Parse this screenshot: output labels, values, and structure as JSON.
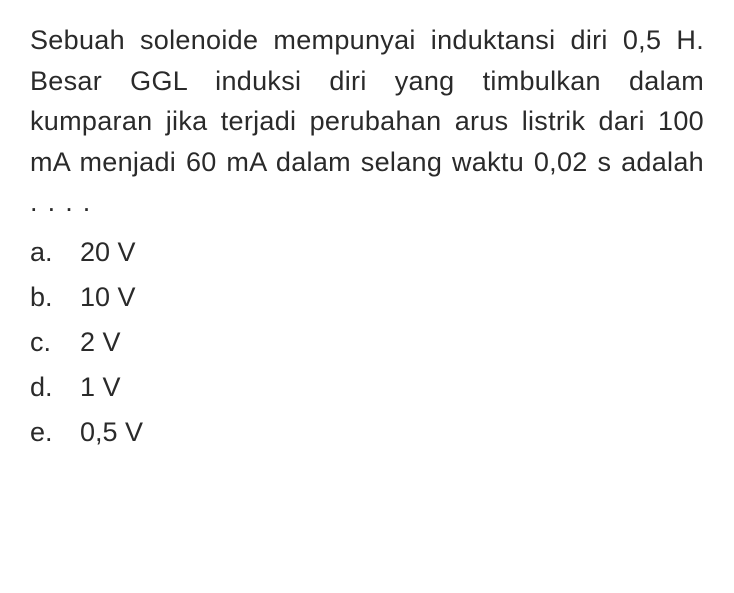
{
  "question": {
    "text": "Sebuah solenoide mempunyai induktansi diri 0,5 H. Besar GGL induksi diri yang timbulkan dalam kumparan jika terjadi perubahan arus listrik dari 100 mA menjadi 60 mA dalam selang waktu 0,02 s adalah . . . ."
  },
  "answers": [
    {
      "letter": "a.",
      "value": "20 V"
    },
    {
      "letter": "b.",
      "value": "10 V"
    },
    {
      "letter": "c.",
      "value": "2 V"
    },
    {
      "letter": "d.",
      "value": "1 V"
    },
    {
      "letter": "e.",
      "value": "0,5 V"
    }
  ],
  "styling": {
    "background_color": "#ffffff",
    "text_color": "#2a2a2a",
    "font_family": "Arial, Helvetica, sans-serif",
    "question_fontsize": 27,
    "answer_fontsize": 27,
    "line_height": 1.5,
    "letter_column_width": 50
  }
}
